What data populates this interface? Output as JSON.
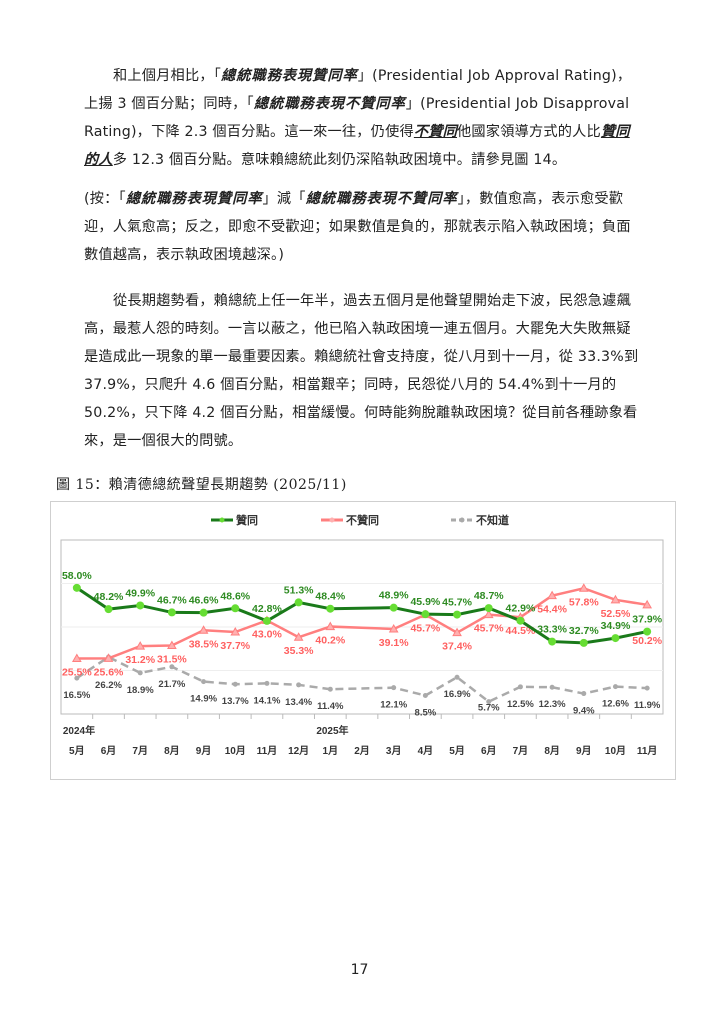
{
  "paragraphs": [
    {
      "indent": true,
      "segments": [
        {
          "t": "和上個月相比，「",
          "s": ""
        },
        {
          "t": "總統職務表現贊同率",
          "s": "em"
        },
        {
          "t": "」(Presidential Job Approval Rating)，上揚 3 個百分點；同時，「",
          "s": ""
        },
        {
          "t": "總統職務表現不贊同率",
          "s": "em"
        },
        {
          "t": "」(Presidential Job Disapproval Rating)，下降 2.3 個百分點。這一來一往，仍使得",
          "s": ""
        },
        {
          "t": "不贊同",
          "s": "ul"
        },
        {
          "t": "他國家領導方式的人比",
          "s": ""
        },
        {
          "t": "贊同的人",
          "s": "ul"
        },
        {
          "t": "多 12.3 個百分點。意味賴總統此刻仍深陷執政困境中。請參見圖 14。",
          "s": ""
        }
      ]
    },
    {
      "indent": false,
      "segments": [
        {
          "t": "(按：「",
          "s": ""
        },
        {
          "t": "總統職務表現贊同率",
          "s": "em"
        },
        {
          "t": "」減「",
          "s": ""
        },
        {
          "t": "總統職務表現不贊同率",
          "s": "em"
        },
        {
          "t": "」，數值愈高，表示愈受歡迎，人氣愈高；反之，即愈不受歡迎；如果數值是負的，那就表示陷入執政困境；負面數值越高，表示執政困境越深。)",
          "s": ""
        }
      ]
    },
    {
      "indent": true,
      "segments": [
        {
          "t": "從長期趨勢看，賴總統上任一年半，過去五個月是他聲望開始走下波，民怨急遽飆高，最惹人怨的時刻。一言以蔽之，他已陷入執政困境一連五個月。大罷免大失敗無疑是造成此一現象的單一最重要因素。賴總統社會支持度，從八月到十一月，從 33.3%到 37.9%，只爬升 4.6 個百分點，相當艱辛；同時，民怨從八月的 54.4%到十一月的 50.2%，只下降 4.2 個百分點，相當緩慢。何時能夠脫離執政困境？從目前各種跡象看來，是一個很大的問號。",
          "s": ""
        }
      ]
    }
  ],
  "caption": "圖 15：賴清德總統聲望長期趨勢 (2025/11)",
  "page_number": "17",
  "chart_data": {
    "type": "line",
    "categories": [
      "5月",
      "6月",
      "7月",
      "8月",
      "9月",
      "10月",
      "11月",
      "12月",
      "1月",
      "2月",
      "3月",
      "4月",
      "5月",
      "6月",
      "7月",
      "8月",
      "9月",
      "10月",
      "11月"
    ],
    "year_labels": [
      {
        "index": 0,
        "label": "2024年"
      },
      {
        "index": 8,
        "label": "2025年"
      }
    ],
    "ylim": [
      0,
      80
    ],
    "grid": true,
    "legend_placement": "top",
    "series": [
      {
        "name": "贊同",
        "color": "#1a7a1a",
        "marker": "circle",
        "marker_color": "#66dd33",
        "dashed": false,
        "values": [
          58.0,
          48.2,
          49.9,
          46.7,
          46.6,
          48.6,
          42.8,
          51.3,
          48.4,
          null,
          48.9,
          45.9,
          45.7,
          48.7,
          42.9,
          33.3,
          32.7,
          34.9,
          37.9
        ],
        "labels": [
          "58.0%",
          "48.2%",
          "49.9%",
          "46.7%",
          "46.6%",
          "48.6%",
          "42.8%",
          "51.3%",
          "48.4%",
          null,
          "48.9%",
          "45.9%",
          "45.7%",
          "48.7%",
          "42.9%",
          "33.3%",
          "32.7%",
          "34.9%",
          "37.9%"
        ]
      },
      {
        "name": "不贊同",
        "color": "#ff7f7f",
        "marker": "triangle",
        "marker_color": "#ffb0b0",
        "dashed": false,
        "values": [
          25.5,
          25.6,
          31.2,
          31.5,
          38.5,
          37.7,
          43.0,
          35.3,
          40.2,
          null,
          39.1,
          45.7,
          37.4,
          45.7,
          44.5,
          54.4,
          57.8,
          52.5,
          50.2
        ],
        "labels": [
          "25.5%",
          "25.6%",
          "31.2%",
          "31.5%",
          "38.5%",
          "37.7%",
          "43.0%",
          "35.3%",
          "40.2%",
          null,
          "39.1%",
          "45.7%",
          "37.4%",
          "45.7%",
          "44.5%",
          "54.4%",
          "57.8%",
          "52.5%",
          "50.2%"
        ]
      },
      {
        "name": "不知道",
        "color": "#aaaaaa",
        "marker": "circle",
        "marker_color": "#aaaaaa",
        "dashed": true,
        "values": [
          16.5,
          26.2,
          18.9,
          21.7,
          14.9,
          13.7,
          14.1,
          13.4,
          11.4,
          null,
          12.1,
          8.5,
          16.9,
          5.7,
          12.5,
          12.3,
          9.4,
          12.6,
          11.9
        ],
        "labels": [
          "16.5%",
          "26.2%",
          "18.9%",
          "21.7%",
          "14.9%",
          "13.7%",
          "14.1%",
          "13.4%",
          "11.4%",
          null,
          "12.1%",
          "8.5%",
          "16.9%",
          "5.7%",
          "12.5%",
          "12.3%",
          "9.4%",
          "12.6%",
          "11.9%"
        ]
      }
    ]
  }
}
